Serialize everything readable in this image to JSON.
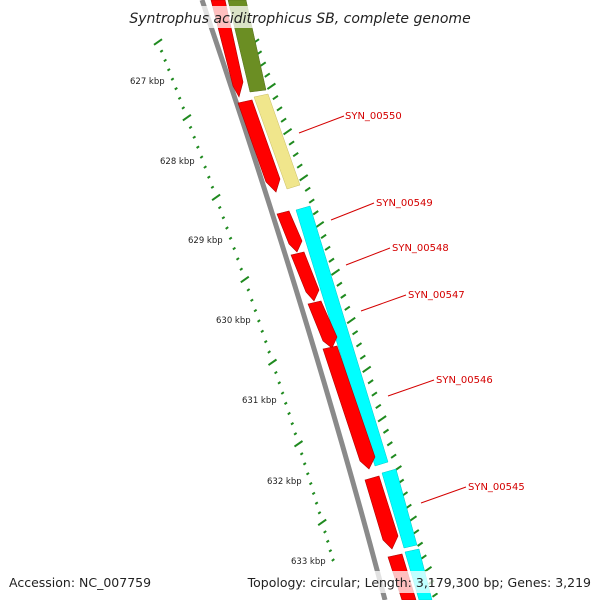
{
  "title": "Syntrophus aciditrophicus SB, complete genome",
  "footer": {
    "accession": "Accession: NC_007759",
    "summary": "Topology: circular; Length: 3,179,300 bp; Genes: 3,219"
  },
  "scale": {
    "unit": "kbp",
    "labels": [
      "627 kbp",
      "628 kbp",
      "629 kbp",
      "630 kbp",
      "631 kbp",
      "632 kbp",
      "633 kbp"
    ]
  },
  "colors": {
    "backbone": "#8a8a8a",
    "cds": "#ff0000",
    "feature_olive": "#6b8e23",
    "feature_khaki": "#f0e68c",
    "feature_cyan": "#00ffff",
    "tick": "#1f8a1f",
    "label": "#d40000"
  },
  "genes": [
    {
      "label": "SYN_00550"
    },
    {
      "label": "SYN_00549"
    },
    {
      "label": "SYN_00548"
    },
    {
      "label": "SYN_00547"
    },
    {
      "label": "SYN_00546"
    },
    {
      "label": "SYN_00545"
    }
  ]
}
